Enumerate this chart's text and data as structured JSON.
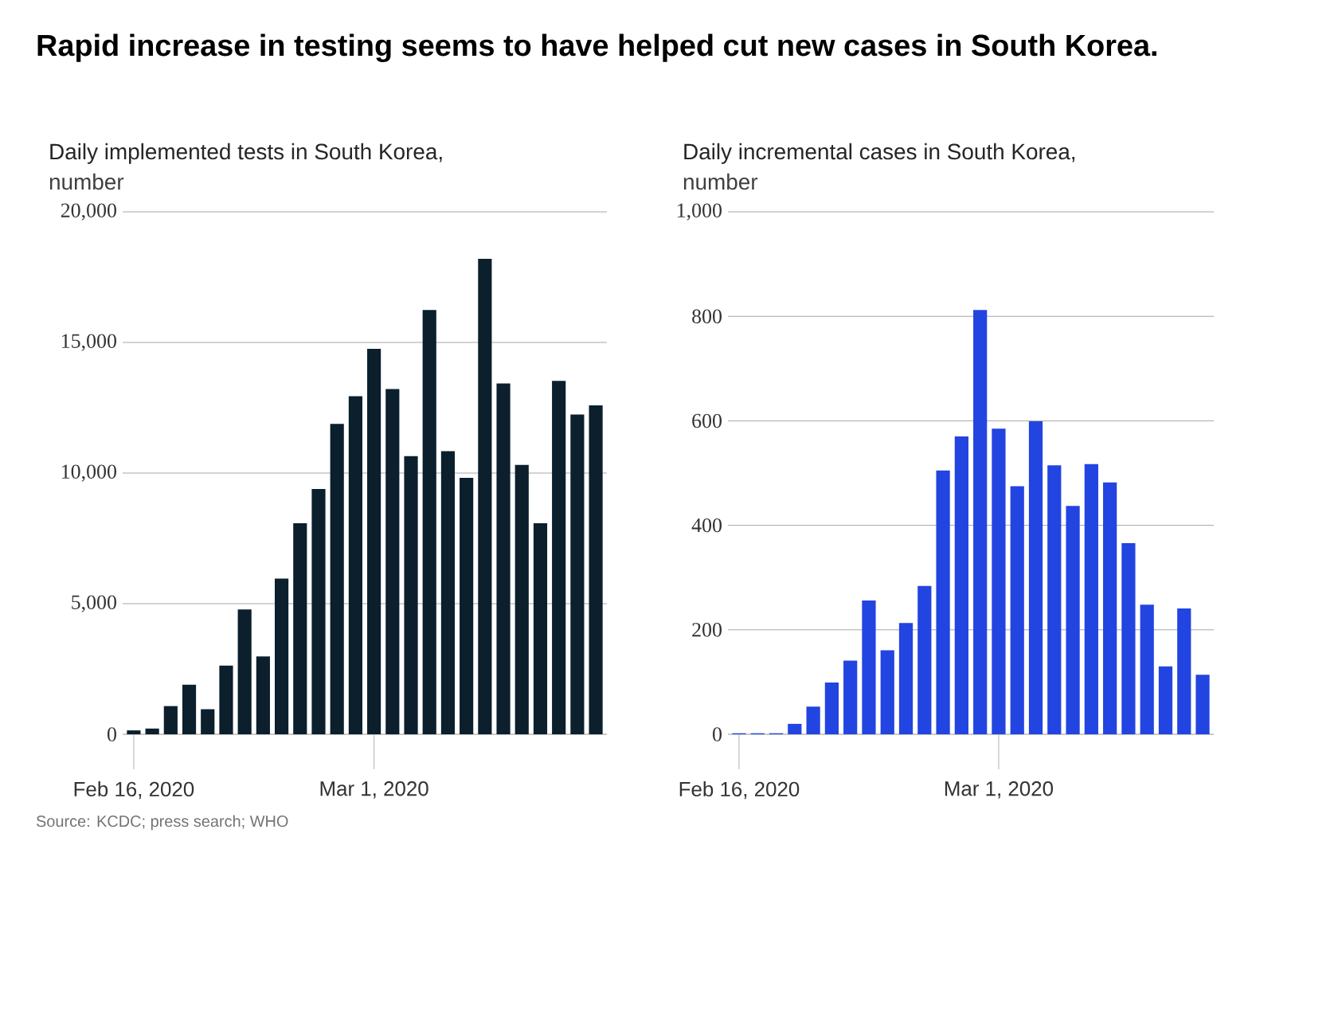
{
  "chart_data": [
    {
      "type": "bar",
      "title": "Daily implemented tests in South Korea,",
      "subtitle": "number",
      "categories": [
        "Feb 16, 2020",
        null,
        null,
        null,
        null,
        null,
        null,
        null,
        null,
        null,
        null,
        null,
        null,
        "Mar 1, 2020",
        null,
        null,
        null,
        null,
        null,
        null,
        null,
        null,
        null,
        null,
        null,
        null
      ],
      "values": [
        150,
        220,
        1080,
        1900,
        960,
        2630,
        4780,
        2980,
        5960,
        8080,
        9390,
        11880,
        12940,
        14760,
        13220,
        10650,
        16240,
        10840,
        9820,
        18200,
        13430,
        10310,
        8080,
        13530,
        12240,
        12590
      ],
      "color": "#0b1f2d",
      "ylim": [
        0,
        20000
      ],
      "yticks": [
        0,
        {
          "value": 5000,
          "label": "5,000"
        },
        {
          "value": 10000,
          "label": "10,000"
        },
        {
          "value": 15000,
          "label": "15,000"
        },
        {
          "value": 20000,
          "label": "20,000"
        }
      ],
      "grid": "y",
      "annotations": [
        "Rapid increase in testing seems to have helped cut new cases in South Korea.",
        "Source: KCDC; press search; WHO"
      ]
    },
    {
      "type": "bar",
      "title": "Daily incremental cases in South Korea,",
      "subtitle": "number",
      "categories": [
        "Feb 16, 2020",
        null,
        null,
        null,
        null,
        null,
        null,
        null,
        null,
        null,
        null,
        null,
        null,
        null,
        "Mar 1, 2020",
        null,
        null,
        null,
        null,
        null,
        null,
        null,
        null,
        null,
        null,
        null
      ],
      "values": [
        2,
        2,
        2,
        20,
        53,
        99,
        141,
        256,
        161,
        213,
        284,
        505,
        570,
        812,
        585,
        475,
        599,
        515,
        437,
        517,
        482,
        366,
        248,
        130,
        241,
        114
      ],
      "color": "#2244e0",
      "ylim": [
        0,
        1000
      ],
      "yticks": [
        0,
        200,
        400,
        600,
        800,
        {
          "value": 1000,
          "label": "1,000"
        }
      ],
      "grid": "y"
    }
  ]
}
